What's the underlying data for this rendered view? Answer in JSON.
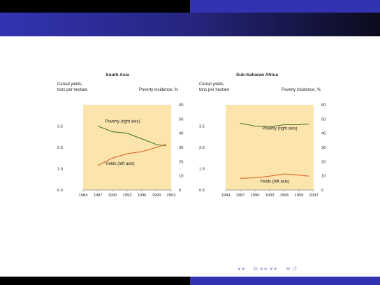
{
  "slide": {
    "colors": {
      "title_bar": "#3333b2",
      "dark_strip": "#000000",
      "plot_bg": "#fbe5ad",
      "poverty_line": "#4a7c2a",
      "yields_line": "#e0662c",
      "nav_icons": "#9b9bd6"
    },
    "nav_icons": [
      "triangle-left-icon",
      "triangle-right-icon",
      "frame-icon",
      "subsection-left-icon",
      "subsection-right-icon",
      "section-left-icon",
      "section-right-icon",
      "align-icon",
      "search-icon"
    ]
  },
  "chart_data": [
    {
      "type": "line",
      "title": "South Asia",
      "ylabel_left": "Cereal yields,\ntons per hectare",
      "ylabel_right": "Poverty incidence, %",
      "x_ticks": [
        "1984",
        "1987",
        "1990",
        "1993",
        "1996",
        "1999",
        "2002"
      ],
      "y_left_ticks": [
        "0.5",
        "1.5",
        "2.5",
        "3.5"
      ],
      "y_right_ticks": [
        "0",
        "10",
        "20",
        "30",
        "40",
        "50",
        "60"
      ],
      "xlim": [
        1984,
        2002
      ],
      "ylim_left": [
        0.5,
        4.5
      ],
      "ylim_right": [
        0,
        60
      ],
      "grid": false,
      "series": [
        {
          "name": "Poverty (right axis)",
          "axis": "right",
          "color": "#4a7c2a",
          "x": [
            1987,
            1990,
            1993,
            1996,
            1999,
            2001
          ],
          "y": [
            45,
            41,
            40,
            36,
            32,
            31
          ]
        },
        {
          "name": "Yields (left axis)",
          "axis": "left",
          "color": "#e0662c",
          "x": [
            1987,
            1990,
            1993,
            1996,
            1999,
            2001
          ],
          "y": [
            1.65,
            2.0,
            2.2,
            2.3,
            2.5,
            2.65
          ]
        }
      ]
    },
    {
      "type": "line",
      "title": "Sub-Saharan Africa",
      "ylabel_left": "Cereal yields,\ntons per hectare",
      "ylabel_right": "Poverty incidence, %",
      "x_ticks": [
        "1984",
        "1987",
        "1990",
        "1993",
        "1996",
        "1999",
        "2002"
      ],
      "y_left_ticks": [
        "0.5",
        "1.5",
        "2.5",
        "3.5"
      ],
      "y_right_ticks": [
        "0",
        "10",
        "20",
        "30",
        "40",
        "50",
        "60"
      ],
      "xlim": [
        1984,
        2002
      ],
      "ylim_left": [
        0.5,
        4.5
      ],
      "ylim_right": [
        0,
        60
      ],
      "grid": false,
      "series": [
        {
          "name": "Poverty (right axis)",
          "axis": "right",
          "color": "#4a7c2a",
          "x": [
            1987,
            1990,
            1993,
            1996,
            1999,
            2001
          ],
          "y": [
            47,
            45,
            44.5,
            46,
            46,
            46.5
          ]
        },
        {
          "name": "Yields (left axis)",
          "axis": "left",
          "color": "#e0662c",
          "x": [
            1987,
            1990,
            1993,
            1996,
            1999,
            2001
          ],
          "y": [
            1.05,
            1.07,
            1.15,
            1.25,
            1.2,
            1.15
          ]
        }
      ]
    }
  ]
}
